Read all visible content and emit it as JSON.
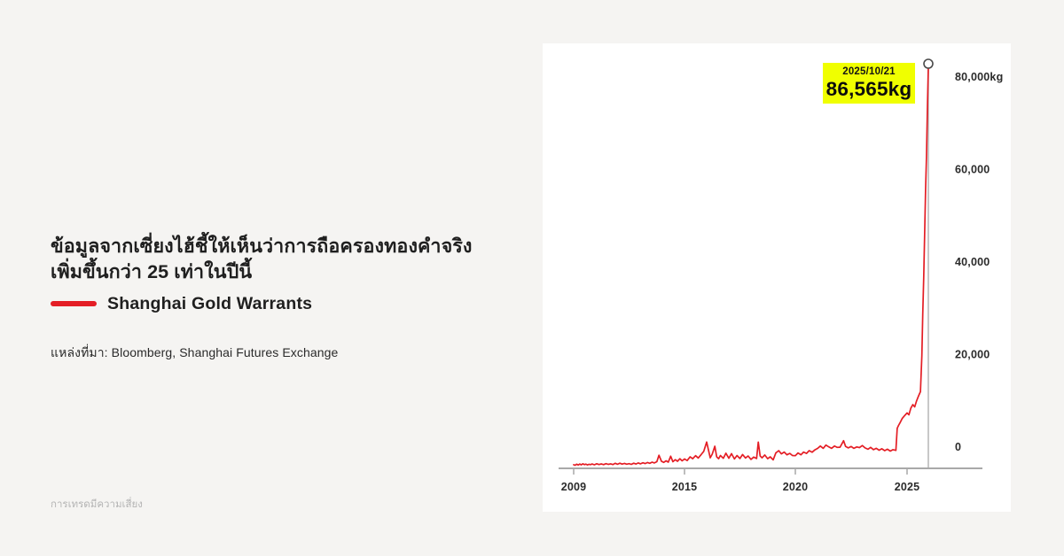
{
  "page": {
    "headline_line1": "ข้อมูลจากเซี่ยงไฮ้ชี้ให้เห็นว่าการถือครองทองคำจริง",
    "headline_line2": "เพิ่มขึ้นกว่า 25 เท่าในปีนี้",
    "source": "แหล่งที่มา: Bloomberg, Shanghai Futures Exchange",
    "disclaimer": "การเทรดมีความเสี่ยง"
  },
  "legend": {
    "label": "Shanghai Gold Warrants",
    "color": "#e41e25"
  },
  "callout": {
    "date": "2025/10/21",
    "value": "86,565kg",
    "bg": "#f0ff00"
  },
  "colors": {
    "page_bg": "#f5f4f2",
    "card_bg": "#ffffff",
    "line": "#e41e25",
    "axis": "#a9a9a9",
    "spine": "#b5b5b5",
    "marker_stroke": "#4a4a4a"
  },
  "chart_data": {
    "type": "line",
    "title": "",
    "xlabel": "",
    "ylabel": "kg",
    "unit": "kg",
    "legend_position": "outside-left",
    "grid": false,
    "xlim": [
      2009,
      2026
    ],
    "ylim": [
      0,
      86565
    ],
    "x_ticks": [
      2009,
      2015,
      2020,
      2025
    ],
    "y_ticks": [
      {
        "value": 0,
        "label": "0"
      },
      {
        "value": 20000,
        "label": "20,000"
      },
      {
        "value": 40000,
        "label": "40,000"
      },
      {
        "value": 60000,
        "label": "60,000"
      },
      {
        "value": 80000,
        "label": "80,000kg"
      }
    ],
    "last_point": {
      "date": "2025/10/21",
      "value": 86565,
      "label": "86,565kg"
    },
    "series": [
      {
        "name": "Shanghai Gold Warrants",
        "points": [
          [
            2009.0,
            400
          ],
          [
            2009.08,
            280
          ],
          [
            2009.16,
            520
          ],
          [
            2009.25,
            350
          ],
          [
            2009.33,
            560
          ],
          [
            2009.41,
            380
          ],
          [
            2009.5,
            600
          ],
          [
            2009.58,
            420
          ],
          [
            2009.66,
            540
          ],
          [
            2009.75,
            360
          ],
          [
            2009.83,
            500
          ],
          [
            2009.91,
            430
          ],
          [
            2010.0,
            560
          ],
          [
            2010.12,
            380
          ],
          [
            2010.25,
            620
          ],
          [
            2010.37,
            450
          ],
          [
            2010.5,
            580
          ],
          [
            2010.62,
            420
          ],
          [
            2010.75,
            640
          ],
          [
            2010.87,
            480
          ],
          [
            2011.0,
            600
          ],
          [
            2011.12,
            440
          ],
          [
            2011.25,
            700
          ],
          [
            2011.37,
            500
          ],
          [
            2011.5,
            720
          ],
          [
            2011.62,
            540
          ],
          [
            2011.75,
            680
          ],
          [
            2011.87,
            520
          ],
          [
            2012.0,
            640
          ],
          [
            2012.12,
            480
          ],
          [
            2012.25,
            720
          ],
          [
            2012.37,
            560
          ],
          [
            2012.5,
            780
          ],
          [
            2012.62,
            600
          ],
          [
            2012.75,
            820
          ],
          [
            2012.87,
            660
          ],
          [
            2013.0,
            880
          ],
          [
            2013.12,
            700
          ],
          [
            2013.25,
            960
          ],
          [
            2013.37,
            780
          ],
          [
            2013.5,
            1060
          ],
          [
            2013.62,
            2450
          ],
          [
            2013.75,
            1150
          ],
          [
            2013.87,
            900
          ],
          [
            2014.0,
            1250
          ],
          [
            2014.12,
            950
          ],
          [
            2014.25,
            2250
          ],
          [
            2014.37,
            1050
          ],
          [
            2014.5,
            1500
          ],
          [
            2014.62,
            1150
          ],
          [
            2014.75,
            1700
          ],
          [
            2014.87,
            1250
          ],
          [
            2015.0,
            1650
          ],
          [
            2015.12,
            1300
          ],
          [
            2015.25,
            2100
          ],
          [
            2015.37,
            1700
          ],
          [
            2015.5,
            2350
          ],
          [
            2015.62,
            1850
          ],
          [
            2015.75,
            2600
          ],
          [
            2015.87,
            3300
          ],
          [
            2016.0,
            5300
          ],
          [
            2016.08,
            3600
          ],
          [
            2016.16,
            1900
          ],
          [
            2016.25,
            2700
          ],
          [
            2016.37,
            4400
          ],
          [
            2016.45,
            2100
          ],
          [
            2016.54,
            1700
          ],
          [
            2016.62,
            2400
          ],
          [
            2016.75,
            1800
          ],
          [
            2016.87,
            2900
          ],
          [
            2017.0,
            1800
          ],
          [
            2017.12,
            2800
          ],
          [
            2017.25,
            1650
          ],
          [
            2017.37,
            2400
          ],
          [
            2017.5,
            1750
          ],
          [
            2017.62,
            2600
          ],
          [
            2017.75,
            1850
          ],
          [
            2017.87,
            2300
          ],
          [
            2018.0,
            1550
          ],
          [
            2018.12,
            2050
          ],
          [
            2018.25,
            1750
          ],
          [
            2018.33,
            5300
          ],
          [
            2018.41,
            2300
          ],
          [
            2018.5,
            1900
          ],
          [
            2018.62,
            2500
          ],
          [
            2018.75,
            1700
          ],
          [
            2018.87,
            2100
          ],
          [
            2019.0,
            1450
          ],
          [
            2019.12,
            2950
          ],
          [
            2019.25,
            3450
          ],
          [
            2019.37,
            2750
          ],
          [
            2019.5,
            3150
          ],
          [
            2019.62,
            2550
          ],
          [
            2019.75,
            2850
          ],
          [
            2019.87,
            2400
          ],
          [
            2020.0,
            2350
          ],
          [
            2020.12,
            2950
          ],
          [
            2020.25,
            2550
          ],
          [
            2020.37,
            3150
          ],
          [
            2020.5,
            2850
          ],
          [
            2020.62,
            3450
          ],
          [
            2020.75,
            3100
          ],
          [
            2020.87,
            3600
          ],
          [
            2021.0,
            3950
          ],
          [
            2021.12,
            4450
          ],
          [
            2021.25,
            3950
          ],
          [
            2021.37,
            4650
          ],
          [
            2021.5,
            4250
          ],
          [
            2021.62,
            3950
          ],
          [
            2021.75,
            4450
          ],
          [
            2021.87,
            4150
          ],
          [
            2022.0,
            4200
          ],
          [
            2022.16,
            5600
          ],
          [
            2022.25,
            4350
          ],
          [
            2022.37,
            4050
          ],
          [
            2022.5,
            4350
          ],
          [
            2022.62,
            3950
          ],
          [
            2022.75,
            4250
          ],
          [
            2022.87,
            4100
          ],
          [
            2023.0,
            4550
          ],
          [
            2023.12,
            4050
          ],
          [
            2023.25,
            3750
          ],
          [
            2023.37,
            4150
          ],
          [
            2023.5,
            3650
          ],
          [
            2023.62,
            3950
          ],
          [
            2023.75,
            3550
          ],
          [
            2023.87,
            3850
          ],
          [
            2024.0,
            3450
          ],
          [
            2024.12,
            3750
          ],
          [
            2024.25,
            3350
          ],
          [
            2024.37,
            3650
          ],
          [
            2024.5,
            3500
          ],
          [
            2024.56,
            8300
          ],
          [
            2024.62,
            8900
          ],
          [
            2024.7,
            9600
          ],
          [
            2024.78,
            10400
          ],
          [
            2024.87,
            10900
          ],
          [
            2025.0,
            11600
          ],
          [
            2025.08,
            11200
          ],
          [
            2025.16,
            12600
          ],
          [
            2025.25,
            13400
          ],
          [
            2025.33,
            12900
          ],
          [
            2025.41,
            14200
          ],
          [
            2025.5,
            15300
          ],
          [
            2025.58,
            16200
          ],
          [
            2025.64,
            24000
          ],
          [
            2025.68,
            33000
          ],
          [
            2025.72,
            41000
          ],
          [
            2025.76,
            50000
          ],
          [
            2025.8,
            60000
          ],
          [
            2025.84,
            67000
          ],
          [
            2025.88,
            78000
          ],
          [
            2025.92,
            86565
          ]
        ]
      }
    ]
  }
}
